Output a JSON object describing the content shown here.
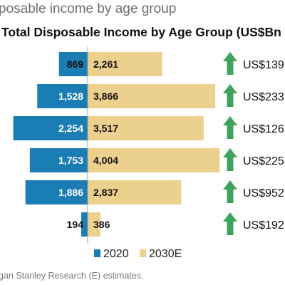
{
  "header": {
    "top_title": "posable income by age group",
    "chart_title": "Total Disposable Income by Age Group (US$Bn"
  },
  "footnote": "gan Stanley Research (E) estimates.",
  "chart_data": {
    "type": "bar",
    "orientation": "horizontal",
    "layout": "diverging",
    "series": [
      {
        "name": "2020",
        "color": "#1a7db4",
        "values": [
          869,
          1528,
          2254,
          1753,
          1886,
          194
        ]
      },
      {
        "name": "2030E",
        "color": "#ecd08e",
        "values": [
          2261,
          3866,
          3517,
          4004,
          2837,
          386
        ]
      }
    ],
    "value_labels": {
      "2020": [
        "869",
        "1,528",
        "2,254",
        "1,753",
        "1,886",
        "194"
      ],
      "2030E": [
        "2,261",
        "3,866",
        "3,517",
        "4,004",
        "2,837",
        "386"
      ]
    },
    "growth_labels": [
      "US$139",
      "US$233",
      "US$126",
      "US$225",
      "US$952",
      "US$192"
    ],
    "growth_icon": "arrow-up-icon",
    "growth_icon_color": "#3ea45d",
    "legend": {
      "position": "bottom",
      "entries": [
        "2020",
        "2030E"
      ]
    }
  }
}
